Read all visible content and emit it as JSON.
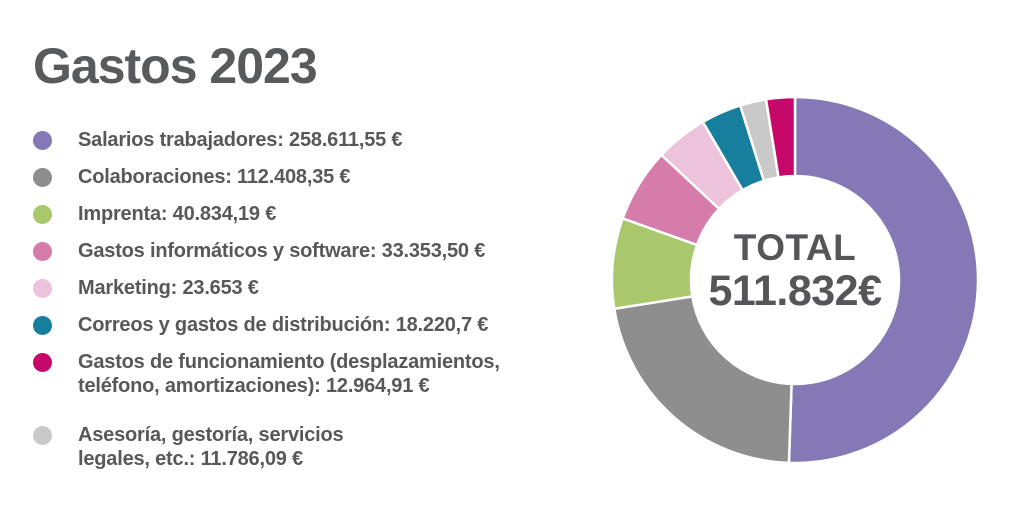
{
  "title": "Gastos 2023",
  "colors": {
    "text": "#58585a",
    "title": "#595a5c",
    "background": "#ffffff",
    "slice_gap": "#ffffff"
  },
  "chart_data": {
    "type": "pie",
    "variant": "donut",
    "title": "Gastos 2023",
    "legend_position": "left",
    "center": {
      "label": "TOTAL",
      "value": "511.832€"
    },
    "total_value": 511832,
    "categories": [
      "Salarios trabajadores",
      "Colaboraciones",
      "Imprenta",
      "Gastos informáticos y software",
      "Marketing",
      "Correos y gastos de distribución",
      "Gastos de funcionamiento (desplazamientos, teléfono, amortizaciones)",
      "Asesoría, gestoría, servicios legales, etc."
    ],
    "series": [
      {
        "id": "salarios",
        "label": "Salarios trabajadores",
        "value": 258611.55,
        "value_display": "258.611,55 €",
        "percent": 50.53,
        "color": "#8478b6",
        "legend_lines": [
          "Salarios trabajadores: 258.611,55 €"
        ]
      },
      {
        "id": "colaboraciones",
        "label": "Colaboraciones",
        "value": 112408.35,
        "value_display": "112.408,35 €",
        "percent": 21.96,
        "color": "#8e8e8e",
        "legend_lines": [
          "Colaboraciones: 112.408,35 €"
        ]
      },
      {
        "id": "imprenta",
        "label": "Imprenta",
        "value": 40834.19,
        "value_display": "40.834,19 €",
        "percent": 7.98,
        "color": "#a9c86b",
        "legend_lines": [
          "Imprenta: 40.834,19 €"
        ]
      },
      {
        "id": "gastos_informaticos",
        "label": "Gastos informáticos y software",
        "value": 33353.5,
        "value_display": "33.353,50 €",
        "percent": 6.52,
        "color": "#d67cab",
        "legend_lines": [
          "Gastos informáticos y software: 33.353,50 €"
        ]
      },
      {
        "id": "marketing",
        "label": "Marketing",
        "value": 23653,
        "value_display": "23.653 €",
        "percent": 4.62,
        "color": "#ecc3da",
        "legend_lines": [
          "Marketing: 23.653 €"
        ]
      },
      {
        "id": "correos",
        "label": "Correos y gastos de distribución",
        "value": 18220.7,
        "value_display": "18.220,7 €",
        "percent": 3.56,
        "color": "#177f9d",
        "legend_lines": [
          "Correos y gastos de distribución: 18.220,7 €"
        ]
      },
      {
        "id": "gastos_funcionamiento",
        "label": "Gastos de funcionamiento (desplazamientos, teléfono, amortizaciones)",
        "value": 12964.91,
        "value_display": "12.964,91 €",
        "percent": 2.53,
        "color": "#c5086a",
        "legend_lines": [
          "Gastos de funcionamiento (desplazamientos,",
          "teléfono, amortizaciones): 12.964,91 €"
        ]
      },
      {
        "id": "asesoria",
        "label": "Asesoría, gestoría, servicios legales, etc.",
        "value": 11786.09,
        "value_display": "11.786,09 €",
        "percent": 2.3,
        "color": "#c9c9c9",
        "legend_lines": [
          "Asesoría, gestoría, servicios",
          "legales, etc.: 11.786,09 €"
        ]
      }
    ],
    "slice_order_clockwise_from_top": [
      "salarios",
      "colaboraciones",
      "imprenta",
      "gastos_informaticos",
      "marketing",
      "correos",
      "asesoria",
      "gastos_funcionamiento"
    ],
    "geometry": {
      "outer_radius": 183,
      "inner_radius": 104,
      "start_angle_deg": 0
    }
  }
}
